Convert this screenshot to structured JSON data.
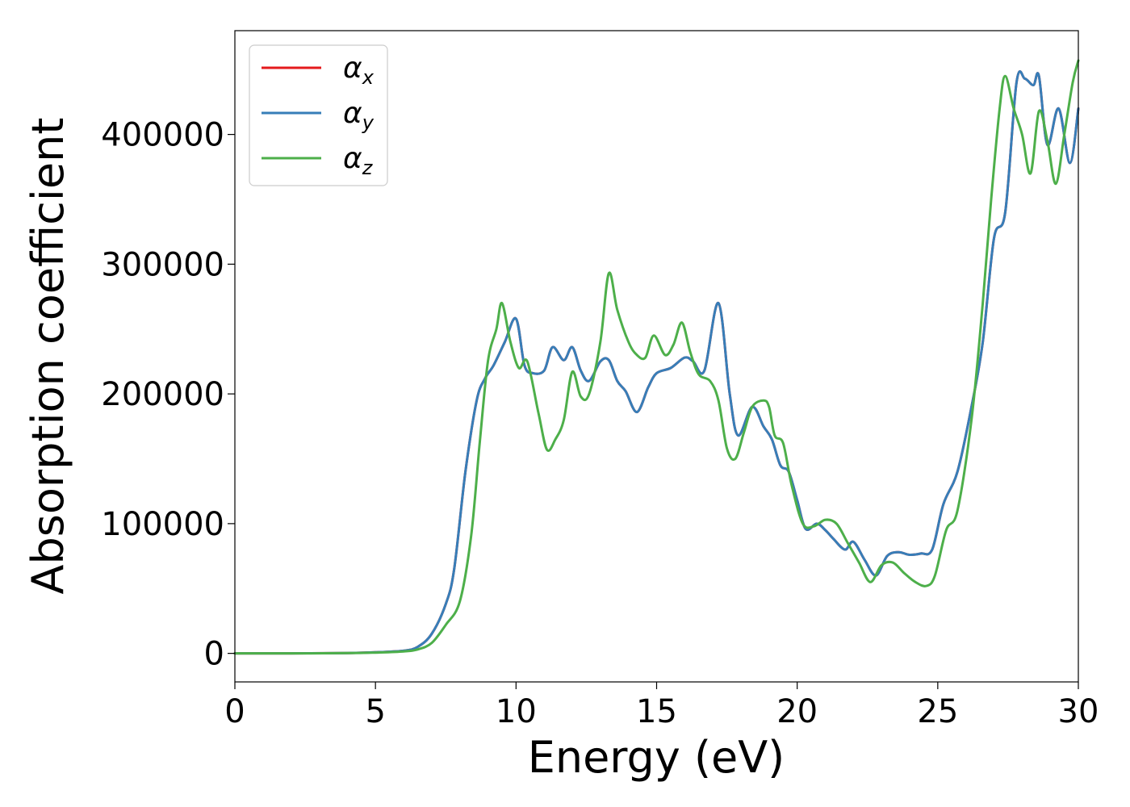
{
  "chart_data": {
    "type": "line",
    "title": "",
    "xlabel": "Energy (eV)",
    "ylabel": "Absorption coefficient",
    "xlim": [
      0,
      30
    ],
    "ylim": [
      -22000,
      480000
    ],
    "xticks": [
      0,
      5,
      10,
      15,
      20,
      25,
      30
    ],
    "xtick_labels": [
      "0",
      "5",
      "10",
      "15",
      "20",
      "25",
      "30"
    ],
    "yticks": [
      0,
      100000,
      200000,
      300000,
      400000
    ],
    "ytick_labels": [
      "0",
      "100000",
      "200000",
      "300000",
      "400000"
    ],
    "grid": false,
    "legend_position": "top-left",
    "series": [
      {
        "name": "αx",
        "legend_main": "α",
        "legend_sub": "x",
        "color": "#e41a1c",
        "x": [
          0,
          2,
          4,
          5,
          6,
          6.5,
          7,
          7.5,
          7.8,
          8.2,
          8.6,
          8.9,
          9.2,
          9.6,
          10.0,
          10.3,
          10.6,
          11.0,
          11.3,
          11.7,
          12.0,
          12.3,
          12.6,
          13.0,
          13.3,
          13.6,
          13.9,
          14.3,
          14.7,
          15.0,
          15.5,
          16.0,
          16.3,
          16.7,
          17.2,
          17.6,
          17.9,
          18.4,
          18.8,
          19.1,
          19.4,
          19.7,
          20.0,
          20.3,
          20.7,
          21.0,
          21.3,
          21.7,
          22.0,
          22.4,
          22.8,
          23.2,
          23.6,
          24.0,
          24.4,
          24.8,
          25.2,
          25.7,
          26.2,
          26.6,
          27.0,
          27.4,
          27.8,
          28.1,
          28.4,
          28.6,
          28.9,
          29.3,
          29.7,
          30.0
        ],
        "values": [
          0,
          0,
          300,
          800,
          2000,
          5000,
          15000,
          38000,
          65000,
          140000,
          195000,
          212000,
          222000,
          240000,
          258000,
          222000,
          216000,
          218000,
          236000,
          226000,
          236000,
          218000,
          210000,
          225000,
          226000,
          210000,
          202000,
          186000,
          205000,
          216000,
          220000,
          228000,
          225000,
          218000,
          270000,
          200000,
          168000,
          190000,
          175000,
          165000,
          145000,
          140000,
          118000,
          96000,
          100000,
          95000,
          88000,
          80000,
          86000,
          72000,
          60000,
          75000,
          78000,
          76000,
          77000,
          80000,
          115000,
          140000,
          190000,
          240000,
          320000,
          340000,
          440000,
          443000,
          438000,
          445000,
          392000,
          420000,
          378000,
          420000
        ]
      },
      {
        "name": "αy",
        "legend_main": "α",
        "legend_sub": "y",
        "color": "#377eb8",
        "x": [
          0,
          2,
          4,
          5,
          6,
          6.5,
          7,
          7.5,
          7.8,
          8.2,
          8.6,
          8.9,
          9.2,
          9.6,
          10.0,
          10.3,
          10.6,
          11.0,
          11.3,
          11.7,
          12.0,
          12.3,
          12.6,
          13.0,
          13.3,
          13.6,
          13.9,
          14.3,
          14.7,
          15.0,
          15.5,
          16.0,
          16.3,
          16.7,
          17.2,
          17.6,
          17.9,
          18.4,
          18.8,
          19.1,
          19.4,
          19.7,
          20.0,
          20.3,
          20.7,
          21.0,
          21.3,
          21.7,
          22.0,
          22.4,
          22.8,
          23.2,
          23.6,
          24.0,
          24.4,
          24.8,
          25.2,
          25.7,
          26.2,
          26.6,
          27.0,
          27.4,
          27.8,
          28.1,
          28.4,
          28.6,
          28.9,
          29.3,
          29.7,
          30.0
        ],
        "values": [
          0,
          0,
          300,
          800,
          2000,
          5000,
          15000,
          38000,
          65000,
          140000,
          195000,
          212000,
          222000,
          240000,
          258000,
          222000,
          216000,
          218000,
          236000,
          226000,
          236000,
          218000,
          210000,
          225000,
          226000,
          210000,
          202000,
          186000,
          205000,
          216000,
          220000,
          228000,
          225000,
          218000,
          270000,
          200000,
          168000,
          190000,
          175000,
          165000,
          145000,
          140000,
          118000,
          96000,
          100000,
          95000,
          88000,
          80000,
          86000,
          72000,
          60000,
          75000,
          78000,
          76000,
          77000,
          80000,
          115000,
          140000,
          190000,
          240000,
          320000,
          340000,
          440000,
          443000,
          438000,
          445000,
          392000,
          420000,
          378000,
          420000
        ]
      },
      {
        "name": "αz",
        "legend_main": "α",
        "legend_sub": "z",
        "color": "#4daf4a",
        "x": [
          0,
          2,
          4,
          5,
          6,
          6.5,
          7,
          7.5,
          8.0,
          8.4,
          8.7,
          9.0,
          9.3,
          9.5,
          9.8,
          10.1,
          10.4,
          10.8,
          11.1,
          11.4,
          11.7,
          12.0,
          12.3,
          12.6,
          13.0,
          13.3,
          13.6,
          14.0,
          14.3,
          14.6,
          14.9,
          15.3,
          15.6,
          15.9,
          16.2,
          16.5,
          16.9,
          17.2,
          17.5,
          17.8,
          18.1,
          18.4,
          18.8,
          19.0,
          19.2,
          19.5,
          19.8,
          20.2,
          20.6,
          21.0,
          21.4,
          21.8,
          22.2,
          22.6,
          23.0,
          23.4,
          23.8,
          24.2,
          24.6,
          24.9,
          25.3,
          25.7,
          26.2,
          26.6,
          26.9,
          27.2,
          27.4,
          27.7,
          28.0,
          28.3,
          28.6,
          28.9,
          29.2,
          29.5,
          29.8,
          30.0
        ],
        "values": [
          0,
          0,
          200,
          600,
          1500,
          3000,
          8000,
          22000,
          40000,
          90000,
          160000,
          225000,
          250000,
          270000,
          240000,
          220000,
          225000,
          185000,
          157000,
          165000,
          180000,
          217000,
          198000,
          200000,
          240000,
          293000,
          265000,
          240000,
          230000,
          228000,
          245000,
          230000,
          238000,
          255000,
          232000,
          215000,
          210000,
          195000,
          158000,
          150000,
          170000,
          190000,
          195000,
          190000,
          168000,
          162000,
          130000,
          100000,
          98000,
          103000,
          100000,
          85000,
          70000,
          55000,
          68000,
          70000,
          62000,
          55000,
          52000,
          60000,
          95000,
          110000,
          180000,
          270000,
          350000,
          420000,
          445000,
          420000,
          400000,
          370000,
          418000,
          395000,
          362000,
          400000,
          440000,
          457000
        ]
      }
    ]
  }
}
